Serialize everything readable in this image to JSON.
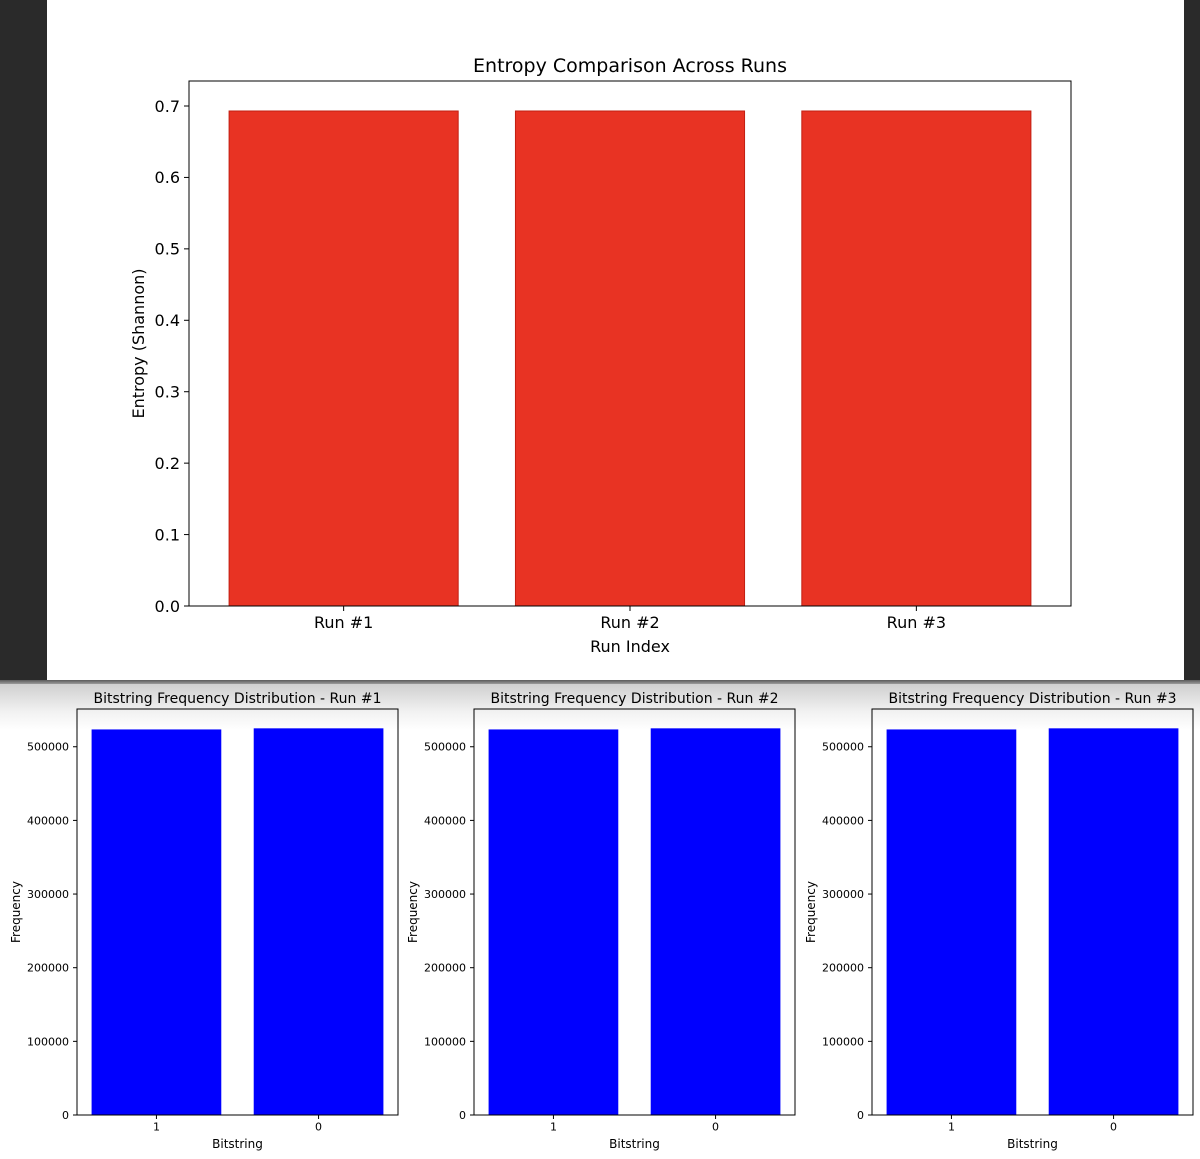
{
  "colors": {
    "entropy_bar": "#e83323",
    "entropy_edge": "#c21f12",
    "freq_bar": "#0000ff"
  },
  "chart_data": [
    {
      "type": "bar",
      "title": "Entropy Comparison Across Runs",
      "xlabel": "Run Index",
      "ylabel": "Entropy (Shannon)",
      "categories": [
        "Run #1",
        "Run #2",
        "Run #3"
      ],
      "values": [
        0.693,
        0.693,
        0.693
      ],
      "ylim": [
        0,
        0.7
      ],
      "yticks": [
        0.0,
        0.1,
        0.2,
        0.3,
        0.4,
        0.5,
        0.6,
        0.7
      ],
      "ytick_labels": [
        "0.0",
        "0.1",
        "0.2",
        "0.3",
        "0.4",
        "0.5",
        "0.6",
        "0.7"
      ],
      "grid": false
    },
    {
      "type": "bar",
      "title": "Bitstring Frequency Distribution - Run #1",
      "xlabel": "Bitstring",
      "ylabel": "Frequency",
      "categories": [
        "1",
        "0"
      ],
      "values": [
        523500,
        525000
      ],
      "yticks": [
        0,
        100000,
        200000,
        300000,
        400000,
        500000
      ],
      "ytick_labels": [
        "0",
        "100000",
        "200000",
        "300000",
        "400000",
        "500000"
      ],
      "grid": false
    },
    {
      "type": "bar",
      "title": "Bitstring Frequency Distribution - Run #2",
      "xlabel": "Bitstring",
      "ylabel": "Frequency",
      "categories": [
        "1",
        "0"
      ],
      "values": [
        523500,
        525000
      ],
      "yticks": [
        0,
        100000,
        200000,
        300000,
        400000,
        500000
      ],
      "ytick_labels": [
        "0",
        "100000",
        "200000",
        "300000",
        "400000",
        "500000"
      ],
      "grid": false
    },
    {
      "type": "bar",
      "title": "Bitstring Frequency Distribution - Run #3",
      "xlabel": "Bitstring",
      "ylabel": "Frequency",
      "categories": [
        "1",
        "0"
      ],
      "values": [
        523500,
        525000
      ],
      "yticks": [
        0,
        100000,
        200000,
        300000,
        400000,
        500000
      ],
      "ytick_labels": [
        "0",
        "100000",
        "200000",
        "300000",
        "400000",
        "500000"
      ],
      "grid": false
    }
  ]
}
